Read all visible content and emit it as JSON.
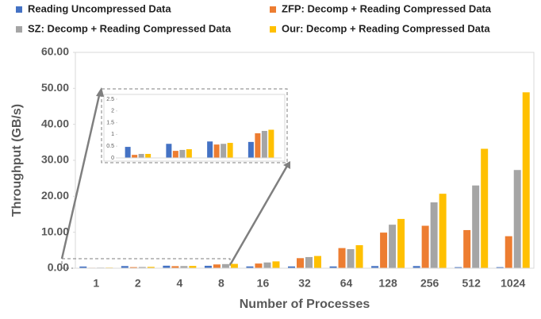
{
  "chart_data": {
    "type": "bar",
    "y_label": "Throughput (GB/s)",
    "x_label": "Number of Processes",
    "categories": [
      "1",
      "2",
      "4",
      "8",
      "16",
      "32",
      "64",
      "128",
      "256",
      "512",
      "1024"
    ],
    "series": [
      {
        "name": "Reading Uncompressed Data",
        "color": "#4472c4",
        "values": [
          0.47,
          0.6,
          0.7,
          0.68,
          0.5,
          0.5,
          0.5,
          0.6,
          0.6,
          0.3,
          0.3
        ]
      },
      {
        "name": "ZFP: Decomp + Reading Compressed Data",
        "color": "#ed7d31",
        "values": [
          0.13,
          0.3,
          0.57,
          1.05,
          1.3,
          2.8,
          5.6,
          9.9,
          11.8,
          10.6,
          8.9
        ]
      },
      {
        "name": "SZ: Decomp + Reading Compressed Data",
        "color": "#a5a5a5",
        "values": [
          0.17,
          0.34,
          0.6,
          1.15,
          1.6,
          3.1,
          5.3,
          12.1,
          18.3,
          23.0,
          27.3
        ]
      },
      {
        "name": "Our: Decomp + Reading Compressed Data",
        "color": "#ffc000",
        "values": [
          0.17,
          0.37,
          0.64,
          1.2,
          1.9,
          3.4,
          6.4,
          13.7,
          20.7,
          33.2,
          48.9
        ]
      }
    ],
    "ylim": [
      0,
      60
    ],
    "yticks": [
      {
        "value": 0,
        "label": "0.00"
      },
      {
        "value": 10,
        "label": "10.00"
      },
      {
        "value": 20,
        "label": "20.00"
      },
      {
        "value": 30,
        "label": "30.00"
      },
      {
        "value": 40,
        "label": "40.00"
      },
      {
        "value": 50,
        "label": "50.00"
      },
      {
        "value": 60,
        "label": "60.00"
      }
    ],
    "grid": false,
    "inset": {
      "ylim": [
        0,
        2.5
      ],
      "yticks": [
        0,
        0.5,
        1,
        1.5,
        2,
        2.5
      ]
    }
  }
}
